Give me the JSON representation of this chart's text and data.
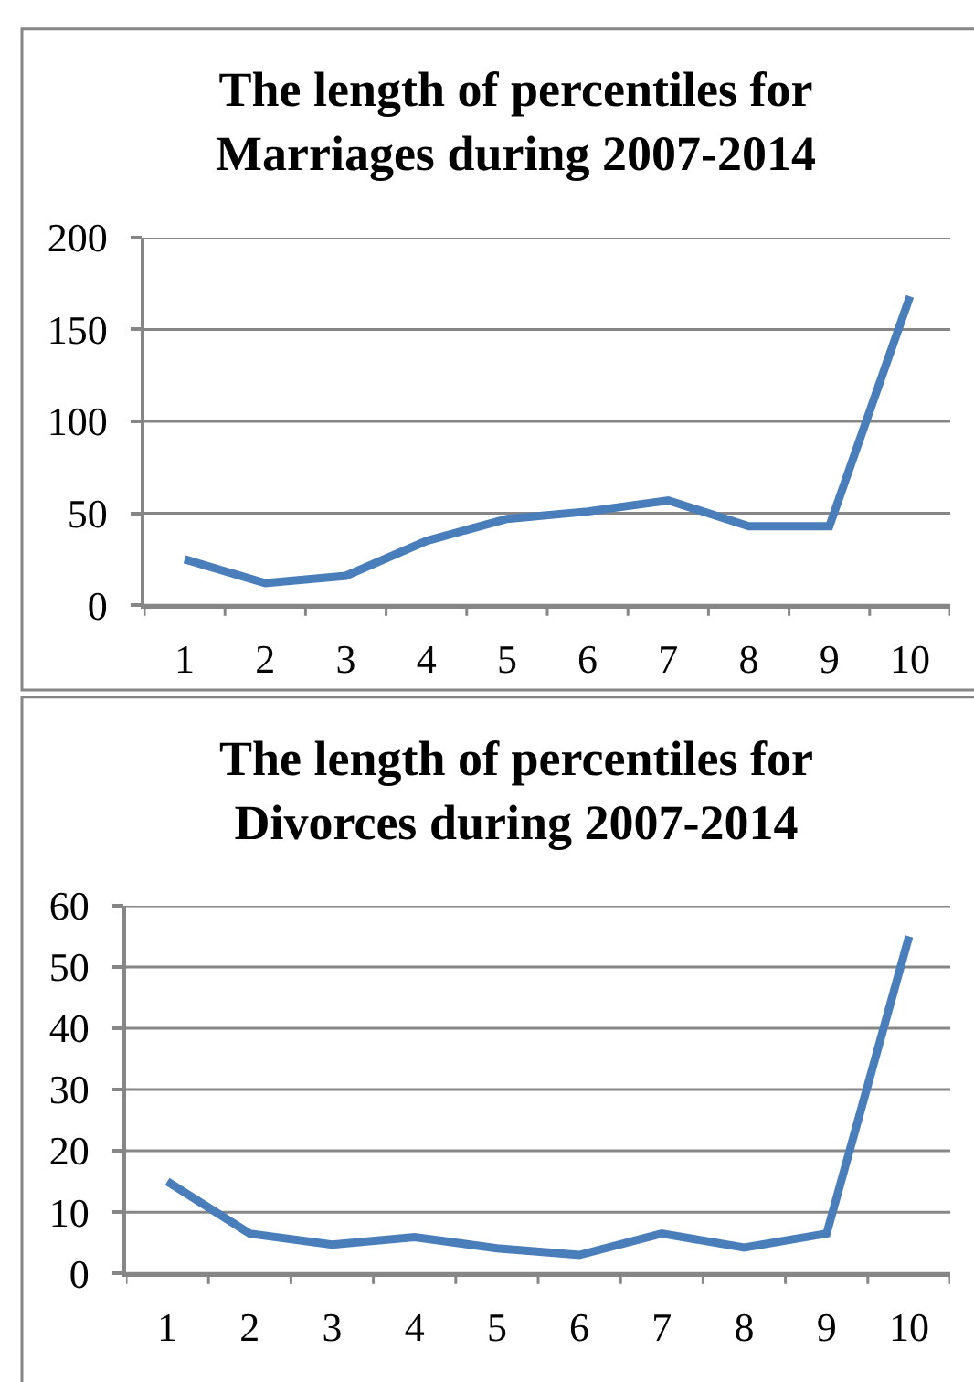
{
  "chart_data": [
    {
      "type": "line",
      "title": "The length of percentiles for Marriages during 2007-2014",
      "categories": [
        "1",
        "2",
        "3",
        "4",
        "5",
        "6",
        "7",
        "8",
        "9",
        "10"
      ],
      "values": [
        25,
        12,
        16,
        35,
        47,
        51,
        57,
        43,
        43,
        168
      ],
      "color": "#4a7ebb",
      "ylim": [
        0,
        200
      ],
      "yticks": [
        0,
        50,
        100,
        150,
        200
      ],
      "grid": "y",
      "legend": false
    },
    {
      "type": "line",
      "title": "The length of percentiles for Divorces during 2007-2014",
      "categories": [
        "1",
        "2",
        "3",
        "4",
        "5",
        "6",
        "7",
        "8",
        "9",
        "10"
      ],
      "values": [
        15,
        6.5,
        4.7,
        5.9,
        4.1,
        3,
        6.5,
        4.2,
        6.5,
        55
      ],
      "color": "#4a7ebb",
      "ylim": [
        0,
        60
      ],
      "yticks": [
        0,
        10,
        20,
        30,
        40,
        50,
        60
      ],
      "grid": "y",
      "legend": false
    }
  ]
}
